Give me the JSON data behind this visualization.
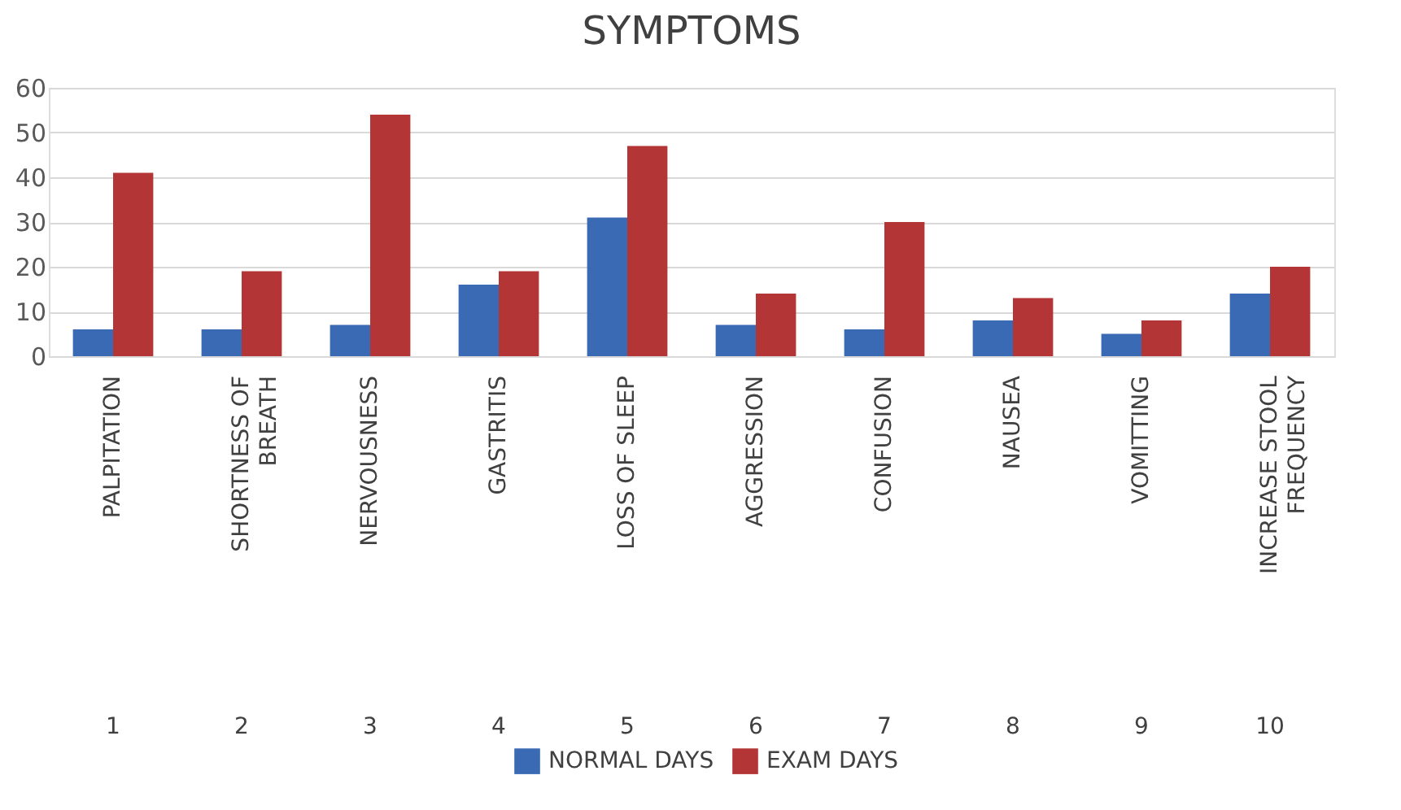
{
  "chart_data": {
    "type": "bar",
    "title": "SYMPTOMS",
    "categories": [
      "PALPITATION",
      "SHORTNESS OF BREATH",
      "NERVOUSNESS",
      "GASTRITIS",
      "LOSS OF SLEEP",
      "AGGRESSION",
      "CONFUSION",
      "NAUSEA",
      "VOMITTING",
      "INCREASE STOOL FREQUENCY"
    ],
    "series": [
      {
        "name": "NORMAL DAYS",
        "color": "#3a6ab4",
        "values": [
          6,
          6,
          7,
          16,
          31,
          7,
          6,
          8,
          5,
          14
        ]
      },
      {
        "name": "EXAM DAYS",
        "color": "#b33535",
        "values": [
          41,
          19,
          54,
          19,
          47,
          14,
          30,
          13,
          8,
          20
        ]
      }
    ],
    "annotations": [
      "1",
      "2",
      "3",
      "4",
      "5",
      "6",
      "7",
      "8",
      "9",
      "10"
    ],
    "ylim": [
      0,
      60
    ],
    "yticks": [
      0,
      10,
      20,
      30,
      40,
      50,
      60
    ],
    "grid": "y",
    "legend": "bottom"
  }
}
